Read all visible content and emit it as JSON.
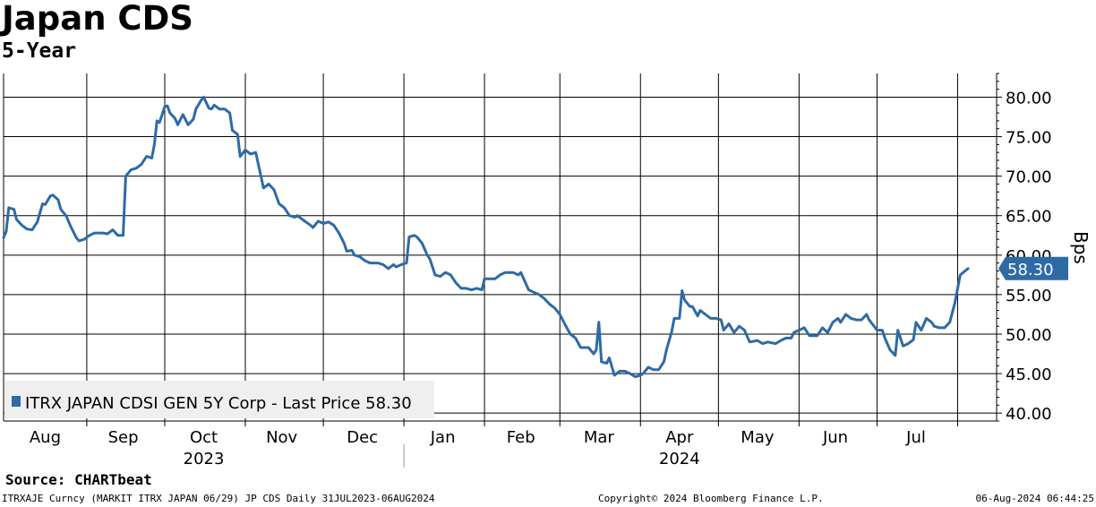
{
  "header": {
    "title": "Japan CDS",
    "subtitle": "5-Year"
  },
  "source_label": "Source: CHARTbeat",
  "footer": {
    "left": "ITRXAJE Curncy (MARKIT ITRX JAPAN 06/29) JP CDS  Daily 31JUL2023-06AUG2024",
    "center": "Copyright© 2024 Bloomberg Finance L.P.",
    "right": "06-Aug-2024 06:44:25"
  },
  "chart_data": {
    "type": "line",
    "title": "Japan CDS",
    "subtitle": "5-Year",
    "ylabel": "Bps",
    "ylim": [
      39,
      83
    ],
    "yticks": [
      40,
      45,
      50,
      55,
      60,
      65,
      70,
      75,
      80
    ],
    "ytick_labels": [
      "40.00",
      "45.00",
      "50.00",
      "55.00",
      "60.00",
      "65.00",
      "70.00",
      "75.00",
      "80.00"
    ],
    "xlim": [
      "2023-07-31",
      "2024-08-16"
    ],
    "x_month_labels": [
      {
        "label": "Aug",
        "date": "2023-08-16"
      },
      {
        "label": "Sep",
        "date": "2023-09-15"
      },
      {
        "label": "Oct",
        "date": "2023-10-16"
      },
      {
        "label": "Nov",
        "date": "2023-11-15"
      },
      {
        "label": "Dec",
        "date": "2023-12-16"
      },
      {
        "label": "Jan",
        "date": "2024-01-16"
      },
      {
        "label": "Feb",
        "date": "2024-02-15"
      },
      {
        "label": "Mar",
        "date": "2024-03-16"
      },
      {
        "label": "Apr",
        "date": "2024-04-16"
      },
      {
        "label": "May",
        "date": "2024-05-16"
      },
      {
        "label": "Jun",
        "date": "2024-06-15"
      },
      {
        "label": "Jul",
        "date": "2024-07-16"
      }
    ],
    "x_year_labels": [
      {
        "label": "2023",
        "date": "2023-10-16"
      },
      {
        "label": "2024",
        "date": "2024-04-16"
      }
    ],
    "year_divider_date": "2024-01-01",
    "vgrid_dates": [
      "2023-09-01",
      "2023-10-01",
      "2023-11-01",
      "2023-12-01",
      "2024-01-01",
      "2024-02-01",
      "2024-03-01",
      "2024-04-01",
      "2024-05-01",
      "2024-06-01",
      "2024-07-01",
      "2024-08-01"
    ],
    "grid": true,
    "legend": "bottom-left",
    "colors": {
      "line": "#2e6aa5",
      "last_price_tag": "#2e6aa5"
    },
    "last_price": 58.3,
    "last_price_label": "58.30",
    "series": [
      {
        "name": "ITRX JAPAN CDSI GEN 5Y Corp - Last Price 58.30",
        "points": [
          [
            "2023-07-31",
            62.2
          ],
          [
            "2023-08-01",
            63.0
          ],
          [
            "2023-08-02",
            66.0
          ],
          [
            "2023-08-04",
            65.8
          ],
          [
            "2023-08-05",
            64.5
          ],
          [
            "2023-08-07",
            63.8
          ],
          [
            "2023-08-09",
            63.3
          ],
          [
            "2023-08-11",
            63.2
          ],
          [
            "2023-08-13",
            64.2
          ],
          [
            "2023-08-15",
            66.5
          ],
          [
            "2023-08-16",
            66.4
          ],
          [
            "2023-08-18",
            67.5
          ],
          [
            "2023-08-19",
            67.6
          ],
          [
            "2023-08-21",
            67.0
          ],
          [
            "2023-08-22",
            65.8
          ],
          [
            "2023-08-24",
            65.0
          ],
          [
            "2023-08-26",
            63.5
          ],
          [
            "2023-08-28",
            62.2
          ],
          [
            "2023-08-29",
            61.8
          ],
          [
            "2023-08-31",
            62.0
          ],
          [
            "2023-09-02",
            62.5
          ],
          [
            "2023-09-04",
            62.8
          ],
          [
            "2023-09-07",
            62.8
          ],
          [
            "2023-09-09",
            62.7
          ],
          [
            "2023-09-11",
            63.2
          ],
          [
            "2023-09-13",
            62.5
          ],
          [
            "2023-09-15",
            62.5
          ],
          [
            "2023-09-16",
            70.0
          ],
          [
            "2023-09-18",
            70.8
          ],
          [
            "2023-09-20",
            71.0
          ],
          [
            "2023-09-22",
            71.5
          ],
          [
            "2023-09-24",
            72.5
          ],
          [
            "2023-09-26",
            72.3
          ],
          [
            "2023-09-27",
            74.0
          ],
          [
            "2023-09-28",
            77.0
          ],
          [
            "2023-09-29",
            76.8
          ],
          [
            "2023-10-01",
            78.8
          ],
          [
            "2023-10-02",
            78.9
          ],
          [
            "2023-10-03",
            78.0
          ],
          [
            "2023-10-05",
            77.3
          ],
          [
            "2023-10-06",
            76.5
          ],
          [
            "2023-10-08",
            77.8
          ],
          [
            "2023-10-10",
            76.5
          ],
          [
            "2023-10-12",
            77.2
          ],
          [
            "2023-10-13",
            78.5
          ],
          [
            "2023-10-15",
            79.6
          ],
          [
            "2023-10-16",
            80.0
          ],
          [
            "2023-10-18",
            78.6
          ],
          [
            "2023-10-19",
            78.5
          ],
          [
            "2023-10-20",
            79.0
          ],
          [
            "2023-10-22",
            78.5
          ],
          [
            "2023-10-24",
            78.5
          ],
          [
            "2023-10-26",
            78.0
          ],
          [
            "2023-10-27",
            75.8
          ],
          [
            "2023-10-29",
            75.3
          ],
          [
            "2023-10-30",
            72.5
          ],
          [
            "2023-11-01",
            73.3
          ],
          [
            "2023-11-03",
            72.8
          ],
          [
            "2023-11-05",
            73.0
          ],
          [
            "2023-11-07",
            70.0
          ],
          [
            "2023-11-08",
            68.5
          ],
          [
            "2023-11-10",
            69.0
          ],
          [
            "2023-11-12",
            68.3
          ],
          [
            "2023-11-14",
            66.5
          ],
          [
            "2023-11-16",
            66.0
          ],
          [
            "2023-11-18",
            65.0
          ],
          [
            "2023-11-20",
            64.8
          ],
          [
            "2023-11-21",
            65.0
          ],
          [
            "2023-11-23",
            64.5
          ],
          [
            "2023-11-26",
            63.8
          ],
          [
            "2023-11-27",
            63.5
          ],
          [
            "2023-11-29",
            64.3
          ],
          [
            "2023-12-01",
            64.0
          ],
          [
            "2023-12-03",
            64.2
          ],
          [
            "2023-12-05",
            63.8
          ],
          [
            "2023-12-07",
            62.8
          ],
          [
            "2023-12-09",
            61.5
          ],
          [
            "2023-12-10",
            60.5
          ],
          [
            "2023-12-12",
            60.6
          ],
          [
            "2023-12-13",
            60.0
          ],
          [
            "2023-12-15",
            59.8
          ],
          [
            "2023-12-17",
            59.3
          ],
          [
            "2023-12-19",
            59.0
          ],
          [
            "2023-12-22",
            59.0
          ],
          [
            "2023-12-24",
            58.8
          ],
          [
            "2023-12-26",
            58.3
          ],
          [
            "2023-12-28",
            58.8
          ],
          [
            "2023-12-29",
            58.5
          ],
          [
            "2023-12-31",
            58.8
          ],
          [
            "2024-01-02",
            59.0
          ],
          [
            "2024-01-03",
            62.3
          ],
          [
            "2024-01-05",
            62.5
          ],
          [
            "2024-01-06",
            62.3
          ],
          [
            "2024-01-08",
            61.5
          ],
          [
            "2024-01-10",
            60.0
          ],
          [
            "2024-01-11",
            59.5
          ],
          [
            "2024-01-13",
            57.5
          ],
          [
            "2024-01-15",
            57.3
          ],
          [
            "2024-01-17",
            57.8
          ],
          [
            "2024-01-19",
            57.5
          ],
          [
            "2024-01-21",
            56.5
          ],
          [
            "2024-01-23",
            55.8
          ],
          [
            "2024-01-25",
            55.8
          ],
          [
            "2024-01-27",
            55.6
          ],
          [
            "2024-01-29",
            55.8
          ],
          [
            "2024-01-31",
            55.6
          ],
          [
            "2024-02-01",
            57.0
          ],
          [
            "2024-02-03",
            57.0
          ],
          [
            "2024-02-05",
            57.0
          ],
          [
            "2024-02-07",
            57.5
          ],
          [
            "2024-02-09",
            57.8
          ],
          [
            "2024-02-12",
            57.8
          ],
          [
            "2024-02-14",
            57.5
          ],
          [
            "2024-02-15",
            57.8
          ],
          [
            "2024-02-18",
            55.6
          ],
          [
            "2024-02-20",
            55.3
          ],
          [
            "2024-02-22",
            55.0
          ],
          [
            "2024-02-24",
            54.5
          ],
          [
            "2024-02-26",
            53.8
          ],
          [
            "2024-02-28",
            53.3
          ],
          [
            "2024-03-01",
            52.5
          ],
          [
            "2024-03-03",
            51.2
          ],
          [
            "2024-03-05",
            50.0
          ],
          [
            "2024-03-07",
            49.5
          ],
          [
            "2024-03-09",
            48.3
          ],
          [
            "2024-03-12",
            48.3
          ],
          [
            "2024-03-14",
            47.5
          ],
          [
            "2024-03-15",
            48.0
          ],
          [
            "2024-03-16",
            51.5
          ],
          [
            "2024-03-17",
            46.5
          ],
          [
            "2024-03-19",
            46.3
          ],
          [
            "2024-03-20",
            47.0
          ],
          [
            "2024-03-22",
            44.8
          ],
          [
            "2024-03-24",
            45.3
          ],
          [
            "2024-03-26",
            45.3
          ],
          [
            "2024-03-28",
            45.0
          ],
          [
            "2024-03-30",
            44.6
          ],
          [
            "2024-04-01",
            44.8
          ],
          [
            "2024-04-02",
            45.0
          ],
          [
            "2024-04-04",
            45.8
          ],
          [
            "2024-04-06",
            45.5
          ],
          [
            "2024-04-08",
            45.5
          ],
          [
            "2024-04-10",
            46.5
          ],
          [
            "2024-04-11",
            48.0
          ],
          [
            "2024-04-13",
            50.3
          ],
          [
            "2024-04-14",
            52.0
          ],
          [
            "2024-04-16",
            52.0
          ],
          [
            "2024-04-17",
            55.5
          ],
          [
            "2024-04-18",
            54.3
          ],
          [
            "2024-04-20",
            53.5
          ],
          [
            "2024-04-21",
            53.5
          ],
          [
            "2024-04-23",
            52.3
          ],
          [
            "2024-04-24",
            53.0
          ],
          [
            "2024-04-26",
            52.5
          ],
          [
            "2024-04-28",
            52.0
          ],
          [
            "2024-04-30",
            52.0
          ],
          [
            "2024-05-02",
            51.8
          ],
          [
            "2024-05-03",
            50.5
          ],
          [
            "2024-05-05",
            51.3
          ],
          [
            "2024-05-07",
            50.2
          ],
          [
            "2024-05-09",
            51.0
          ],
          [
            "2024-05-11",
            50.5
          ],
          [
            "2024-05-13",
            49.0
          ],
          [
            "2024-05-16",
            49.2
          ],
          [
            "2024-05-18",
            48.8
          ],
          [
            "2024-05-20",
            49.0
          ],
          [
            "2024-05-23",
            48.8
          ],
          [
            "2024-05-25",
            49.2
          ],
          [
            "2024-05-27",
            49.5
          ],
          [
            "2024-05-29",
            49.5
          ],
          [
            "2024-05-30",
            50.2
          ],
          [
            "2024-06-01",
            50.5
          ],
          [
            "2024-06-03",
            50.8
          ],
          [
            "2024-06-05",
            49.8
          ],
          [
            "2024-06-08",
            49.8
          ],
          [
            "2024-06-10",
            50.8
          ],
          [
            "2024-06-12",
            50.2
          ],
          [
            "2024-06-14",
            51.5
          ],
          [
            "2024-06-16",
            52.0
          ],
          [
            "2024-06-17",
            51.5
          ],
          [
            "2024-06-19",
            52.5
          ],
          [
            "2024-06-21",
            52.0
          ],
          [
            "2024-06-23",
            51.8
          ],
          [
            "2024-06-25",
            51.8
          ],
          [
            "2024-06-27",
            52.5
          ],
          [
            "2024-06-28",
            51.8
          ],
          [
            "2024-07-01",
            50.5
          ],
          [
            "2024-07-03",
            50.5
          ],
          [
            "2024-07-04",
            49.5
          ],
          [
            "2024-07-06",
            48.0
          ],
          [
            "2024-07-08",
            47.3
          ],
          [
            "2024-07-09",
            50.5
          ],
          [
            "2024-07-11",
            48.5
          ],
          [
            "2024-07-13",
            48.8
          ],
          [
            "2024-07-15",
            49.3
          ],
          [
            "2024-07-16",
            51.5
          ],
          [
            "2024-07-18",
            50.5
          ],
          [
            "2024-07-20",
            52.0
          ],
          [
            "2024-07-22",
            51.5
          ],
          [
            "2024-07-23",
            51.0
          ],
          [
            "2024-07-25",
            50.8
          ],
          [
            "2024-07-27",
            50.8
          ],
          [
            "2024-07-29",
            51.5
          ],
          [
            "2024-07-31",
            54.0
          ],
          [
            "2024-08-02",
            57.5
          ],
          [
            "2024-08-05",
            58.3
          ]
        ]
      }
    ]
  }
}
